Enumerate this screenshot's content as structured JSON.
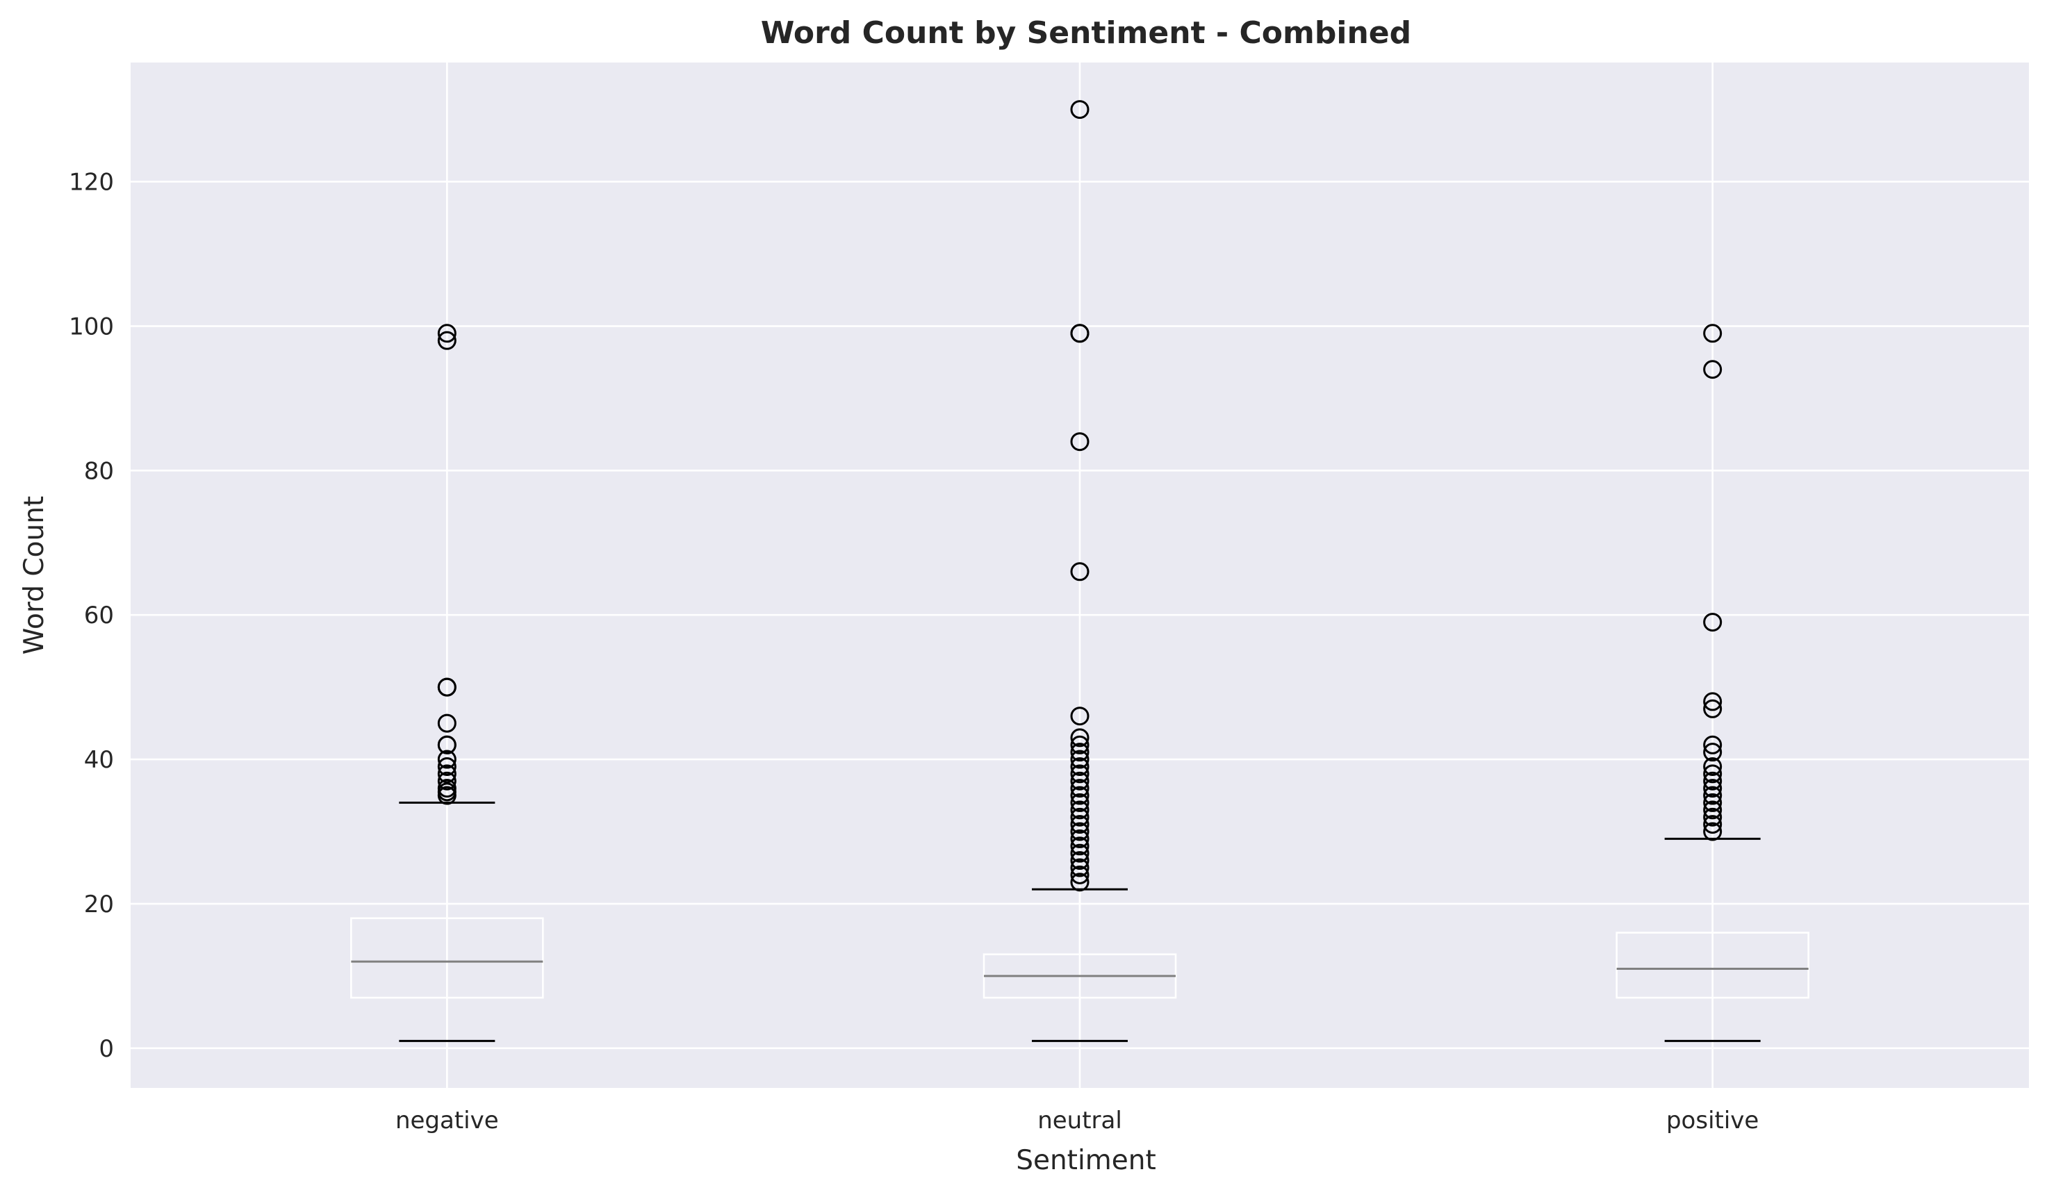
{
  "chart_data": {
    "type": "box",
    "title": "Word Count by Sentiment - Combined",
    "xlabel": "Sentiment",
    "ylabel": "Word Count",
    "categories": [
      "negative",
      "neutral",
      "positive"
    ],
    "ylim": [
      -5.5,
      136.5
    ],
    "yticks": [
      0,
      20,
      40,
      60,
      80,
      100,
      120
    ],
    "grid": true,
    "colors": {
      "plot_bg": "#eaeaf2",
      "grid": "#ffffff",
      "box_edge": "#ffffff",
      "median": "#808080",
      "whisker_cap": "#000000",
      "flier": "#000000",
      "text": "#262626"
    },
    "boxes": [
      {
        "category": "negative",
        "whislo": 1,
        "q1": 7,
        "median": 12,
        "q3": 18,
        "whishi": 34,
        "fliers": [
          35,
          35.5,
          36,
          37,
          38,
          39,
          40,
          42,
          42,
          45,
          50,
          50,
          98,
          99
        ]
      },
      {
        "category": "neutral",
        "whislo": 1,
        "q1": 7,
        "median": 10,
        "q3": 13,
        "whishi": 22,
        "fliers": [
          23,
          24,
          25,
          26,
          27,
          28,
          29,
          30,
          31,
          32,
          33,
          34,
          35,
          36,
          37,
          38,
          39,
          40,
          41,
          42,
          43,
          46,
          66,
          84,
          99,
          99,
          130
        ]
      },
      {
        "category": "positive",
        "whislo": 1,
        "q1": 7,
        "median": 11,
        "q3": 16,
        "whishi": 29,
        "fliers": [
          30,
          31,
          32,
          33,
          34,
          35,
          36,
          37,
          38,
          39,
          41,
          42,
          47,
          48,
          59,
          94,
          99
        ]
      }
    ]
  }
}
